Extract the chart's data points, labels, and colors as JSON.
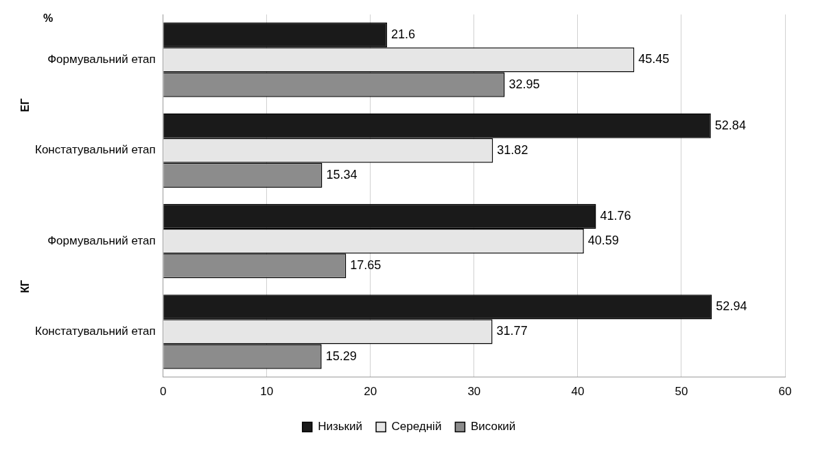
{
  "chart_data": {
    "type": "bar",
    "orientation": "horizontal",
    "categories": [
      "Формувальний етап",
      "Констатувальний етап",
      "Формувальний етап",
      "Констатувальний етап"
    ],
    "series": [
      {
        "name": "Низький",
        "color": "#1a1a1a",
        "values": [
          21.6,
          52.84,
          41.76,
          52.94
        ]
      },
      {
        "name": "Середній",
        "color": "#e6e6e6",
        "values": [
          45.45,
          31.82,
          40.59,
          31.77
        ]
      },
      {
        "name": "Високий",
        "color": "#8c8c8c",
        "values": [
          32.95,
          15.34,
          17.65,
          15.29
        ]
      }
    ],
    "xlim": [
      0,
      60
    ],
    "xticks": [
      0,
      10,
      20,
      30,
      40,
      50,
      60
    ],
    "grid": "x",
    "legend": "bottom",
    "data_labels": true,
    "annotations": [
      "%",
      "ЕГ",
      "КГ"
    ]
  }
}
